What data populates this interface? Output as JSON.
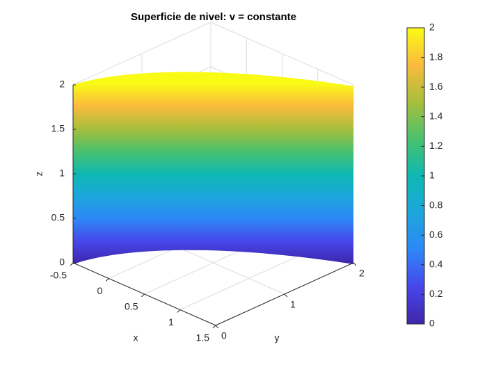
{
  "chart_data": {
    "type": "surface",
    "title": "Superficie de nivel: v = constante",
    "xlabel": "x",
    "ylabel": "y",
    "zlabel": "z",
    "xlim": [
      -0.5,
      1.5
    ],
    "xticks": [
      -0.5,
      0,
      0.5,
      1,
      1.5
    ],
    "ylim": [
      0,
      2
    ],
    "yticks": [
      0,
      1,
      2
    ],
    "zlim": [
      0,
      2
    ],
    "zticks": [
      0,
      0.5,
      1,
      1.5,
      2
    ],
    "grid": true,
    "colormap": "parula",
    "colorbar": {
      "clim": [
        0,
        2
      ],
      "ticks": [
        0,
        0.2,
        0.4,
        0.6,
        0.8,
        1,
        1.2,
        1.4,
        1.6,
        1.8,
        2
      ]
    }
  }
}
